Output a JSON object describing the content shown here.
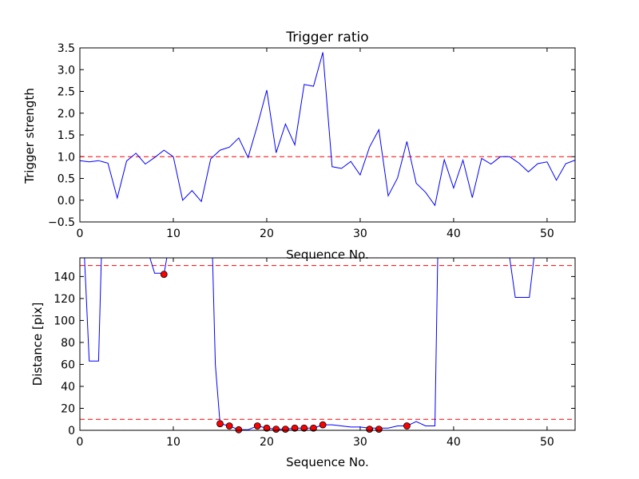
{
  "chart_data": [
    {
      "type": "line",
      "title": "Trigger ratio",
      "xlabel": "Sequence No.",
      "ylabel": "Trigger strength",
      "xlim": [
        0,
        53
      ],
      "ylim": [
        -0.5,
        3.5
      ],
      "xticks": [
        "0",
        "10",
        "20",
        "30",
        "40",
        "50"
      ],
      "yticks": [
        "−0.5",
        "0.0",
        "0.5",
        "1.0",
        "1.5",
        "2.0",
        "2.5",
        "3.0",
        "3.5"
      ],
      "grid": false,
      "threshold": 1.0,
      "series": [
        {
          "color": "#0000ff",
          "x": [
            0,
            1,
            2,
            3,
            4,
            5,
            6,
            7,
            8,
            9,
            10,
            11,
            12,
            13,
            14,
            15,
            16,
            17,
            18,
            19,
            20,
            21,
            22,
            23,
            24,
            25,
            26,
            27,
            28,
            29,
            30,
            31,
            32,
            33,
            34,
            35,
            36,
            37,
            38,
            39,
            40,
            41,
            42,
            43,
            44,
            45,
            46,
            47,
            48,
            49,
            50,
            51,
            52,
            53
          ],
          "y": [
            0.91,
            0.88,
            0.91,
            0.85,
            0.05,
            0.9,
            1.08,
            0.83,
            0.98,
            1.15,
            1.0,
            0.0,
            0.22,
            -0.03,
            0.95,
            1.15,
            1.22,
            1.43,
            0.98,
            1.72,
            2.53,
            1.09,
            1.75,
            1.27,
            2.66,
            2.62,
            3.4,
            0.77,
            0.73,
            0.89,
            0.58,
            1.22,
            1.62,
            0.1,
            0.51,
            1.35,
            0.39,
            0.18,
            -0.12,
            0.93,
            0.28,
            0.92,
            0.06,
            0.96,
            0.83,
            1.0,
            1.0,
            0.85,
            0.65,
            0.84,
            0.88,
            0.46,
            0.84,
            0.92
          ]
        }
      ]
    },
    {
      "type": "line",
      "title": "",
      "xlabel": "Sequence No.",
      "ylabel": "Distance [pix]",
      "xlim": [
        0,
        53
      ],
      "ylim": [
        0,
        157
      ],
      "xticks": [
        "0",
        "10",
        "20",
        "30",
        "40",
        "50"
      ],
      "yticks": [
        "0",
        "20",
        "40",
        "60",
        "80",
        "100",
        "120",
        "140"
      ],
      "grid": false,
      "thresholds": [
        150,
        10
      ],
      "series": [
        {
          "color": "#0000ff",
          "x": [
            0,
            0.5,
            1,
            2,
            2.3,
            7.5,
            8,
            8.6,
            9,
            9.3,
            14,
            14.2,
            14.5,
            15,
            16,
            17,
            18,
            19,
            20,
            21,
            22,
            23,
            24,
            25,
            26,
            27,
            28,
            29,
            30,
            31,
            32,
            33,
            34,
            35,
            36,
            37,
            38,
            38.3,
            46,
            46.6,
            47.2,
            48.1,
            48.6,
            53
          ],
          "y": [
            157,
            157,
            63,
            63,
            157,
            157,
            143,
            143,
            142,
            157,
            157,
            157,
            60,
            6,
            4,
            0.5,
            0.5,
            4,
            2,
            1,
            1,
            2,
            2,
            2,
            5,
            5,
            4,
            3,
            3,
            2,
            2,
            2,
            4,
            4,
            8,
            4,
            4,
            157,
            157,
            121,
            121,
            121,
            157,
            157
          ]
        },
        {
          "name": "",
          "markers_color": "#ff0000",
          "x": [
            9,
            15,
            16,
            17,
            19,
            20,
            21,
            22,
            23,
            24,
            25,
            26,
            31,
            32,
            35
          ],
          "y": [
            142,
            6,
            4,
            0.5,
            4,
            2,
            1,
            1,
            2,
            2,
            2,
            5,
            1,
            1,
            4
          ]
        }
      ]
    }
  ]
}
